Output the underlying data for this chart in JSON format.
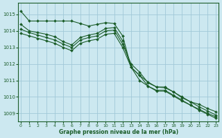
{
  "xlabel": "Graphe pression niveau de la mer (hPa)",
  "bg_color": "#cce8f0",
  "grid_color": "#a0c8d8",
  "line_color": "#1a5c28",
  "ylim": [
    1008.5,
    1015.7
  ],
  "xlim": [
    -0.3,
    23.3
  ],
  "yticks": [
    1009,
    1010,
    1011,
    1012,
    1013,
    1014,
    1015
  ],
  "xticks": [
    0,
    1,
    2,
    3,
    4,
    5,
    6,
    7,
    8,
    9,
    10,
    11,
    12,
    13,
    14,
    15,
    16,
    17,
    18,
    19,
    20,
    21,
    22,
    23
  ],
  "lines": [
    [
      1015.2,
      1014.6,
      1014.6,
      1014.6,
      1014.6,
      1014.6,
      1014.6,
      1014.45,
      1014.3,
      1014.4,
      1014.5,
      1014.45,
      1013.7,
      1011.8,
      1011.3,
      1010.9,
      1010.6,
      1010.55,
      1010.3,
      1009.95,
      1009.7,
      1009.55,
      1009.3,
      1009.1
    ],
    [
      1014.4,
      1014.0,
      1013.9,
      1013.8,
      1013.65,
      1013.35,
      1013.15,
      1013.6,
      1013.75,
      1013.85,
      1014.15,
      1014.2,
      1013.4,
      1011.8,
      1011.0,
      1010.65,
      1010.35,
      1010.35,
      1010.05,
      1009.75,
      1009.5,
      1009.25,
      1009.0,
      1008.8
    ],
    [
      1014.1,
      1013.9,
      1013.75,
      1013.6,
      1013.45,
      1013.2,
      1013.0,
      1013.45,
      1013.6,
      1013.7,
      1014.0,
      1014.05,
      1013.2,
      1012.0,
      1011.5,
      1010.85,
      1010.6,
      1010.6,
      1010.3,
      1010.0,
      1009.7,
      1009.4,
      1009.15,
      1008.9
    ],
    [
      1013.85,
      1013.7,
      1013.55,
      1013.4,
      1013.25,
      1013.0,
      1012.8,
      1013.25,
      1013.4,
      1013.5,
      1013.8,
      1013.85,
      1013.0,
      1011.8,
      1011.3,
      1010.65,
      1010.4,
      1010.4,
      1010.1,
      1009.8,
      1009.5,
      1009.2,
      1008.95,
      1008.7
    ]
  ]
}
